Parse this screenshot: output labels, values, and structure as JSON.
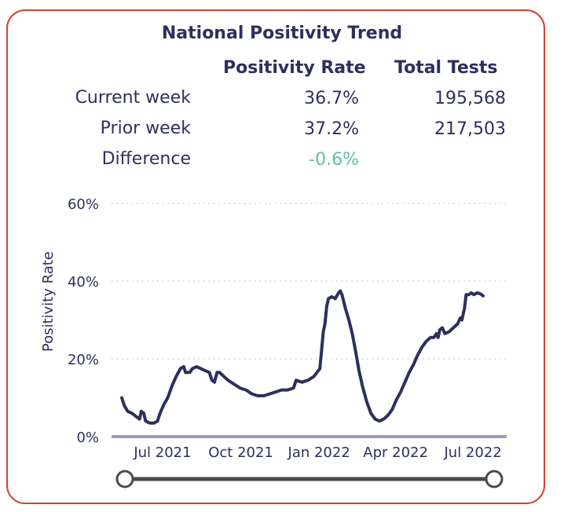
{
  "title": "National Positivity Trend",
  "table": {
    "headers": [
      "Positivity Rate",
      "Total Tests"
    ],
    "rows": [
      {
        "label": "Current week",
        "rate": "36.7%",
        "tests": "195,568"
      },
      {
        "label": "Prior week",
        "rate": "37.2%",
        "tests": "217,503"
      },
      {
        "label": "Difference",
        "rate": "-0.6%",
        "tests": ""
      }
    ]
  },
  "colors": {
    "accent_border": "#d2432c",
    "line": "#2d2f5e",
    "difference": "#5fbfa8",
    "axis": "#9a9bbd"
  },
  "chart_data": {
    "type": "line",
    "ylabel": "Positivity Rate",
    "ylim": [
      0,
      60
    ],
    "y_ticks": [
      "0%",
      "20%",
      "40%",
      "60%"
    ],
    "x_ticks": [
      "Jul 2021",
      "Oct 2021",
      "Jan 2022",
      "Apr 2022",
      "Jul 2022"
    ],
    "x_range": [
      "2021-05-14",
      "2022-08-05"
    ],
    "grid": true,
    "series": [
      {
        "points": [
          [
            "2021-05-14",
            10
          ],
          [
            "2021-05-17",
            8
          ],
          [
            "2021-05-21",
            6.5
          ],
          [
            "2021-05-26",
            6
          ],
          [
            "2021-06-01",
            5
          ],
          [
            "2021-06-04",
            4.5
          ],
          [
            "2021-06-06",
            6.5
          ],
          [
            "2021-06-09",
            6
          ],
          [
            "2021-06-11",
            4
          ],
          [
            "2021-06-16",
            3.5
          ],
          [
            "2021-06-21",
            3.5
          ],
          [
            "2021-06-25",
            4
          ],
          [
            "2021-06-28",
            6
          ],
          [
            "2021-07-02",
            8
          ],
          [
            "2021-07-07",
            10
          ],
          [
            "2021-07-12",
            13
          ],
          [
            "2021-07-17",
            15.5
          ],
          [
            "2021-07-22",
            17.5
          ],
          [
            "2021-07-26",
            18
          ],
          [
            "2021-07-28",
            16.5
          ],
          [
            "2021-08-02",
            16.5
          ],
          [
            "2021-08-05",
            17.5
          ],
          [
            "2021-08-10",
            18
          ],
          [
            "2021-08-15",
            17.5
          ],
          [
            "2021-08-20",
            17
          ],
          [
            "2021-08-25",
            16.5
          ],
          [
            "2021-08-28",
            14.5
          ],
          [
            "2021-08-31",
            14
          ],
          [
            "2021-09-03",
            16.5
          ],
          [
            "2021-09-06",
            16.5
          ],
          [
            "2021-09-11",
            15.5
          ],
          [
            "2021-09-16",
            14.5
          ],
          [
            "2021-09-23",
            13.5
          ],
          [
            "2021-09-30",
            12.5
          ],
          [
            "2021-10-07",
            12
          ],
          [
            "2021-10-14",
            11
          ],
          [
            "2021-10-21",
            10.5
          ],
          [
            "2021-10-28",
            10.5
          ],
          [
            "2021-11-04",
            11
          ],
          [
            "2021-11-11",
            11.5
          ],
          [
            "2021-11-18",
            12
          ],
          [
            "2021-11-25",
            12
          ],
          [
            "2021-12-02",
            12.5
          ],
          [
            "2021-12-05",
            14.5
          ],
          [
            "2021-12-12",
            14
          ],
          [
            "2021-12-19",
            14.5
          ],
          [
            "2021-12-26",
            15.5
          ],
          [
            "2022-01-02",
            17.5
          ],
          [
            "2022-01-06",
            27
          ],
          [
            "2022-01-08",
            29
          ],
          [
            "2022-01-10",
            33.5
          ],
          [
            "2022-01-12",
            35.5
          ],
          [
            "2022-01-16",
            36
          ],
          [
            "2022-01-20",
            35.5
          ],
          [
            "2022-01-24",
            37
          ],
          [
            "2022-01-26",
            37.5
          ],
          [
            "2022-01-28",
            36.5
          ],
          [
            "2022-02-01",
            33
          ],
          [
            "2022-02-05",
            30
          ],
          [
            "2022-02-09",
            26.5
          ],
          [
            "2022-02-13",
            22
          ],
          [
            "2022-02-17",
            17
          ],
          [
            "2022-02-21",
            13
          ],
          [
            "2022-02-26",
            9
          ],
          [
            "2022-03-03",
            6
          ],
          [
            "2022-03-08",
            4.5
          ],
          [
            "2022-03-13",
            4
          ],
          [
            "2022-03-18",
            4.5
          ],
          [
            "2022-03-23",
            5.5
          ],
          [
            "2022-03-28",
            7
          ],
          [
            "2022-04-02",
            9.5
          ],
          [
            "2022-04-07",
            11.5
          ],
          [
            "2022-04-12",
            14
          ],
          [
            "2022-04-17",
            16.5
          ],
          [
            "2022-04-22",
            18.5
          ],
          [
            "2022-04-27",
            21
          ],
          [
            "2022-05-02",
            23
          ],
          [
            "2022-05-07",
            24.5
          ],
          [
            "2022-05-12",
            25.5
          ],
          [
            "2022-05-16",
            25.5
          ],
          [
            "2022-05-19",
            26.5
          ],
          [
            "2022-05-21",
            25.5
          ],
          [
            "2022-05-23",
            27.5
          ],
          [
            "2022-05-26",
            28
          ],
          [
            "2022-05-29",
            26.5
          ],
          [
            "2022-06-03",
            27
          ],
          [
            "2022-06-08",
            28
          ],
          [
            "2022-06-13",
            29
          ],
          [
            "2022-06-16",
            30.5
          ],
          [
            "2022-06-18",
            30
          ],
          [
            "2022-06-21",
            33
          ],
          [
            "2022-06-23",
            36.5
          ],
          [
            "2022-06-26",
            36.5
          ],
          [
            "2022-06-29",
            37
          ],
          [
            "2022-07-02",
            36.5
          ],
          [
            "2022-07-06",
            37
          ],
          [
            "2022-07-10",
            36.7
          ],
          [
            "2022-07-13",
            36.2
          ]
        ]
      }
    ]
  }
}
